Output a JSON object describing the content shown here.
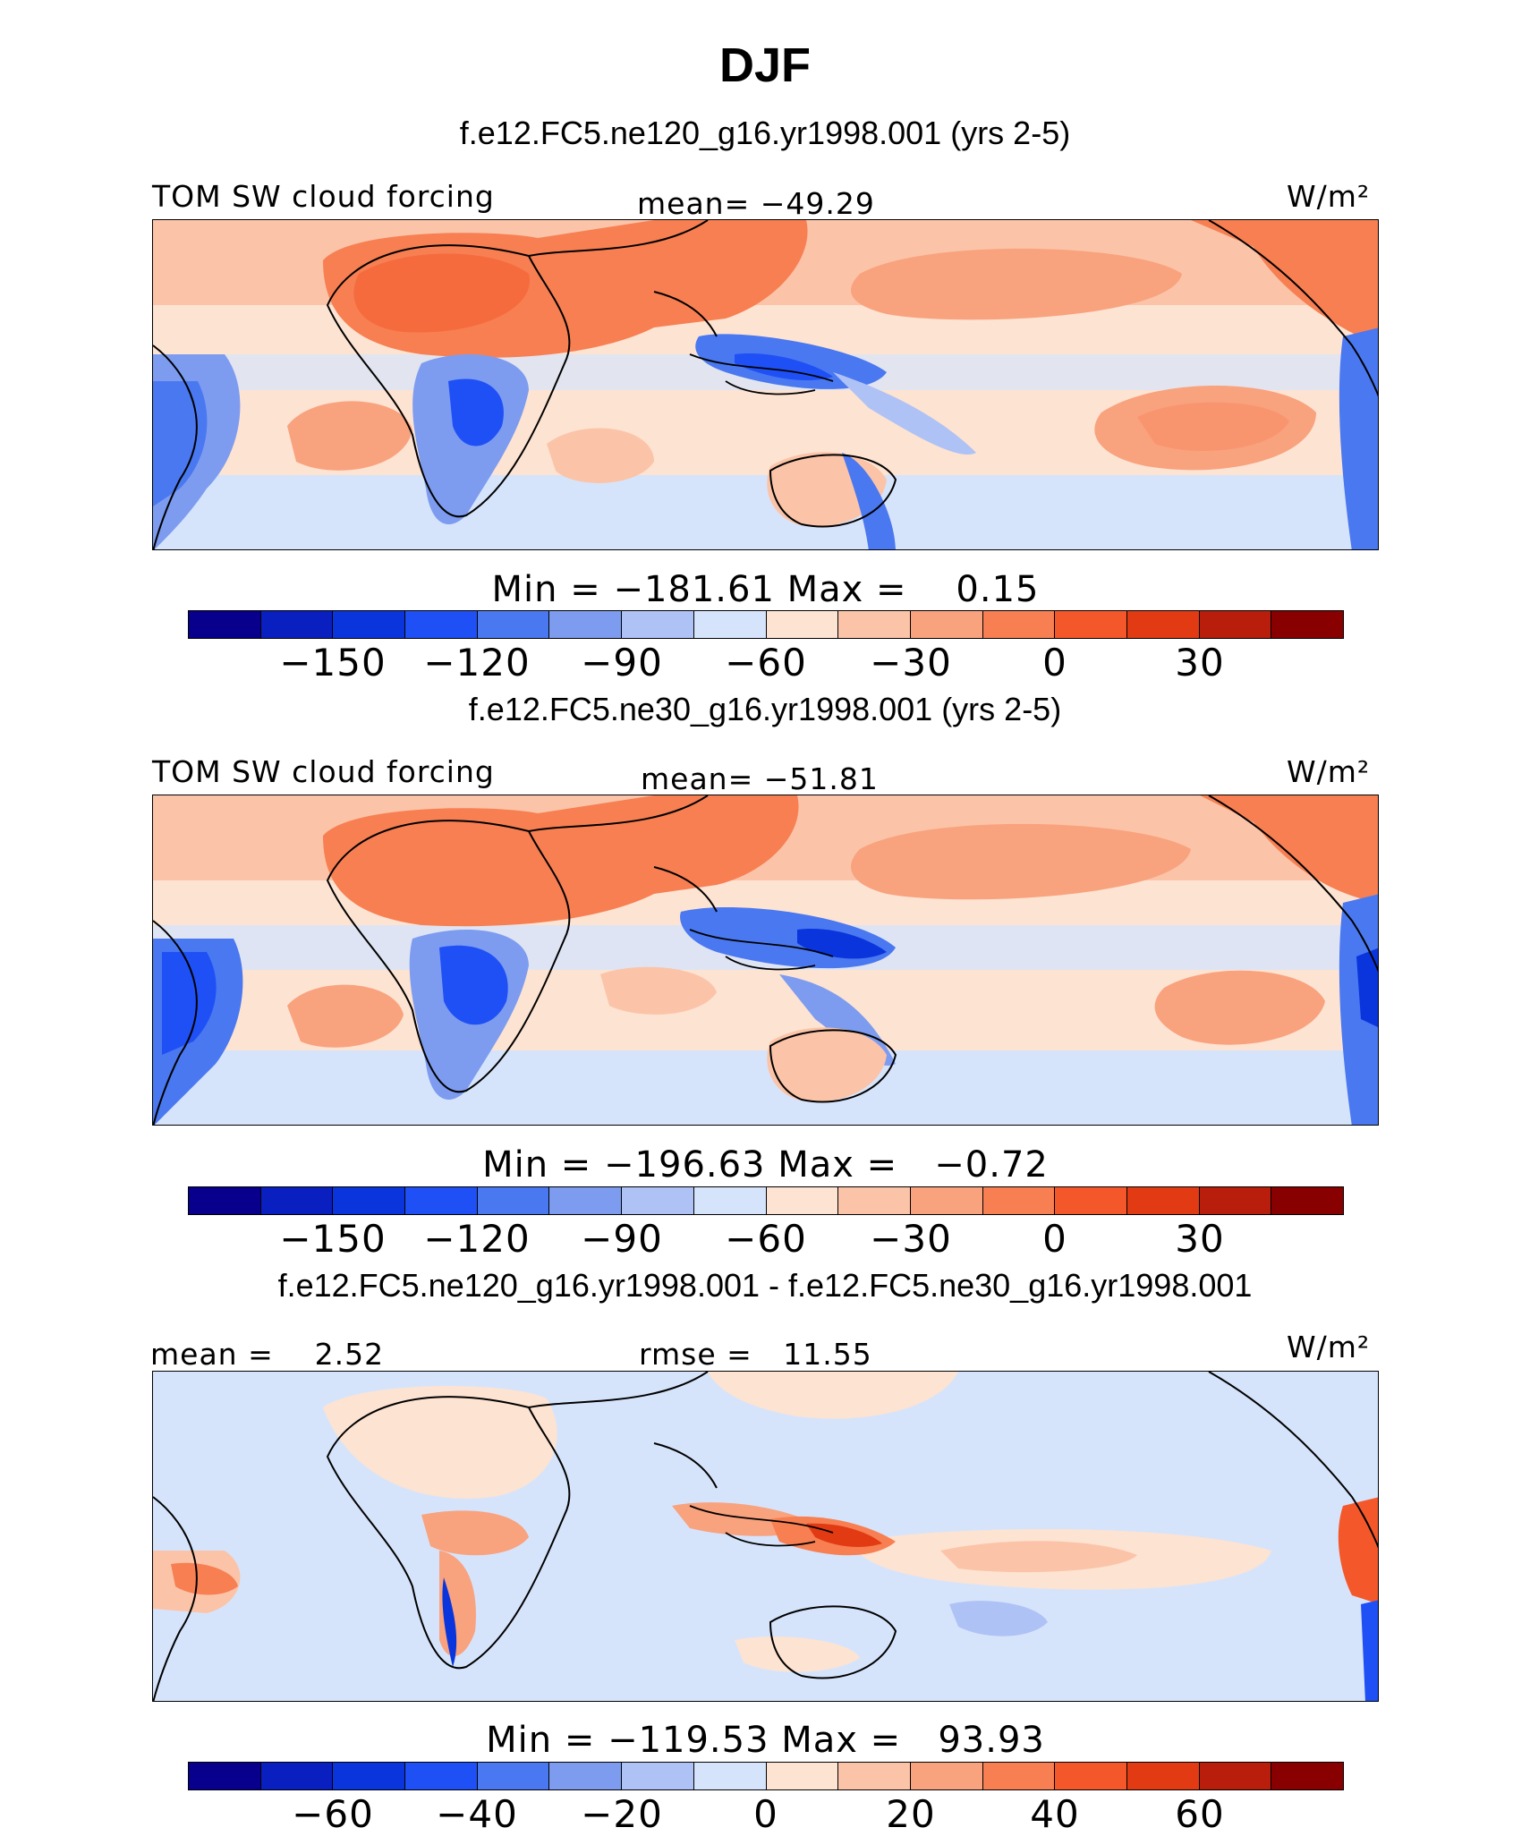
{
  "title": "DJF",
  "palette": [
    "#08008c",
    "#0a1fc0",
    "#0a35dd",
    "#1f50f5",
    "#4a78f0",
    "#7d9cf0",
    "#aec2f5",
    "#d6e4fb",
    "#fde3d2",
    "#fbc4a8",
    "#f9a27e",
    "#f77f52",
    "#f4582a",
    "#e23a12",
    "#b81e0b",
    "#880000"
  ],
  "panels": [
    {
      "case_title": "f.e12.FC5.ne120_g16.yr1998.001 (yrs 2-5)",
      "left_label": "TOM SW cloud forcing",
      "center_label": "mean= −49.29",
      "units_label": "W/m²",
      "minmax": "Min = −181.61 Max =    0.15",
      "ticks": [
        "−150",
        "−120",
        "−90",
        "−60",
        "−30",
        "0",
        "30"
      ]
    },
    {
      "case_title": "f.e12.FC5.ne30_g16.yr1998.001 (yrs 2-5)",
      "left_label": "TOM SW cloud forcing",
      "center_label": "mean= −51.81",
      "units_label": "W/m²",
      "minmax": "Min = −196.63 Max =   −0.72",
      "ticks": [
        "−150",
        "−120",
        "−90",
        "−60",
        "−30",
        "0",
        "30"
      ]
    },
    {
      "case_title": "f.e12.FC5.ne120_g16.yr1998.001 - f.e12.FC5.ne30_g16.yr1998.001",
      "left_label": "mean =    2.52",
      "center_label": "rmse =   11.55",
      "units_label": "W/m²",
      "minmax": "Min = −119.53 Max =   93.93",
      "ticks": [
        "−60",
        "−40",
        "−20",
        "0",
        "20",
        "40",
        "60"
      ]
    }
  ]
}
